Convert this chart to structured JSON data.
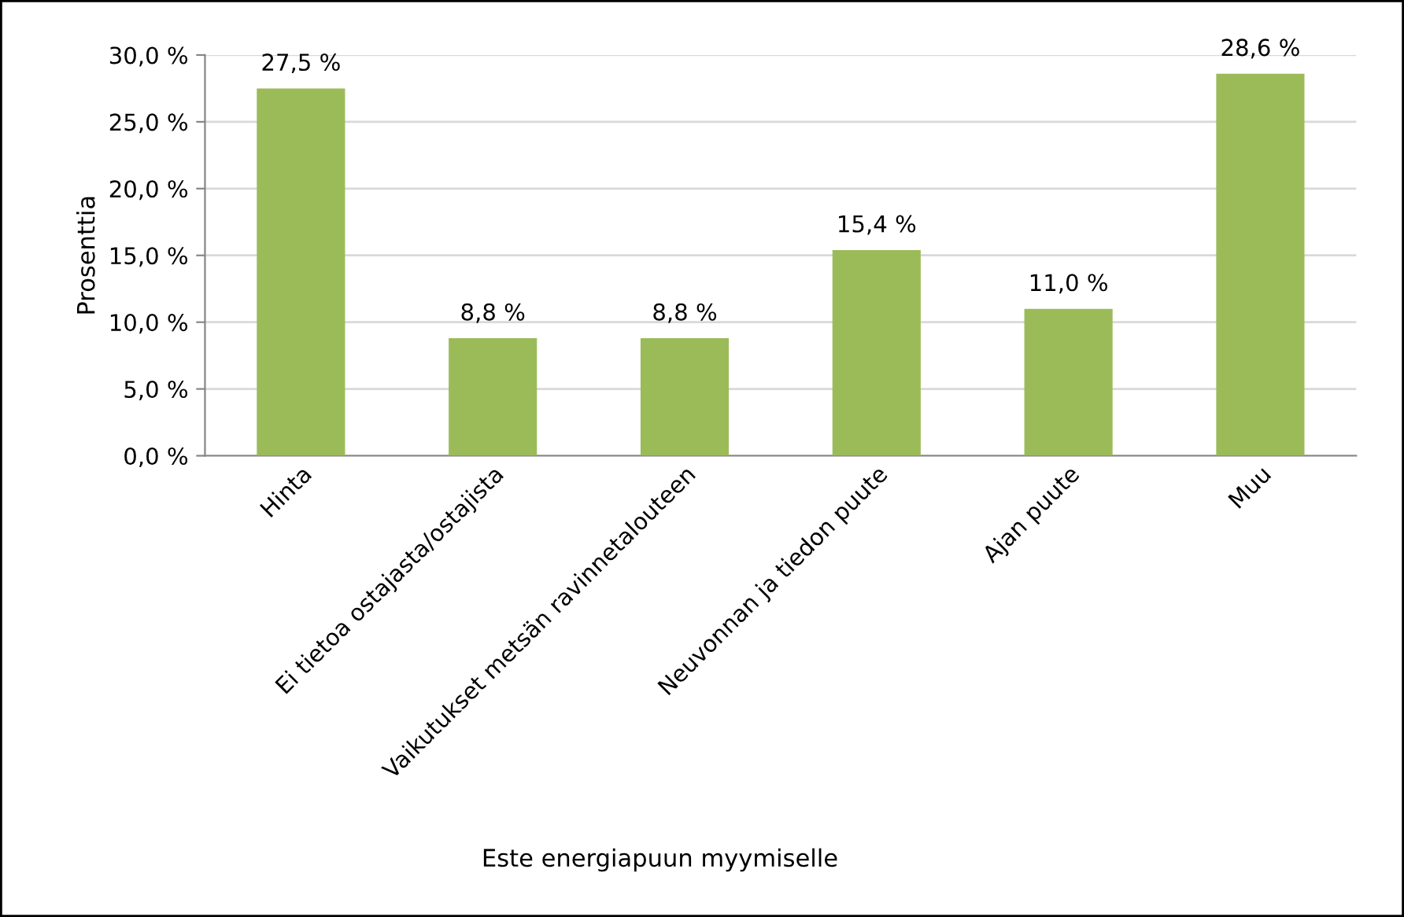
{
  "chart_data": {
    "type": "bar",
    "xlabel": "Este energiapuun myymiselle",
    "ylabel": "Prosenttia",
    "categories": [
      "Hinta",
      "Ei tietoa ostajasta/ostajista",
      "Vaikutukset metsän ravinnetalouteen",
      "Neuvonnan ja tiedon puute",
      "Ajan puute",
      "Muu"
    ],
    "values": [
      27.5,
      8.8,
      8.8,
      15.4,
      11.0,
      28.6
    ],
    "value_labels": [
      "27,5 %",
      "8,8 %",
      "8,8 %",
      "15,4 %",
      "11,0 %",
      "28,6 %"
    ],
    "color": "#9bbb59",
    "ylim": [
      0,
      30
    ],
    "yticks": [
      {
        "value": 0,
        "label": "0,0 %"
      },
      {
        "value": 5,
        "label": "5,0 %"
      },
      {
        "value": 10,
        "label": "10,0 %"
      },
      {
        "value": 15,
        "label": "15,0 %"
      },
      {
        "value": 20,
        "label": "20,0 %"
      },
      {
        "value": 25,
        "label": "25,0 %"
      },
      {
        "value": 30,
        "label": "30,0 %"
      }
    ],
    "grid": "y"
  }
}
